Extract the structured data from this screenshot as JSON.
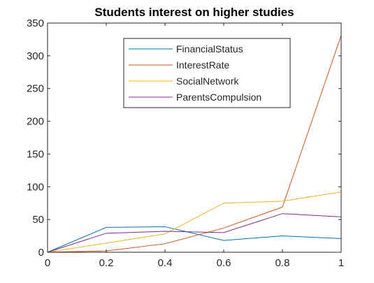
{
  "chart_data": {
    "type": "line",
    "title": "Students interest on higher studies",
    "xlabel": "",
    "ylabel": "",
    "x": [
      0,
      0.2,
      0.4,
      0.6,
      0.8,
      1
    ],
    "xlim": [
      0,
      1
    ],
    "ylim": [
      0,
      350
    ],
    "xticks": [
      "0",
      "0.2",
      "0.4",
      "0.6",
      "0.8",
      "1"
    ],
    "yticks": [
      "0",
      "50",
      "100",
      "150",
      "200",
      "250",
      "300",
      "350"
    ],
    "xtick_values": [
      0,
      0.2,
      0.4,
      0.6,
      0.8,
      1
    ],
    "ytick_values": [
      0,
      50,
      100,
      150,
      200,
      250,
      300,
      350
    ],
    "grid": false,
    "legend_position": "top-center",
    "series": [
      {
        "name": "FinancialStatus",
        "color": "#0072BD",
        "values": [
          0,
          38,
          39,
          18,
          25,
          21
        ]
      },
      {
        "name": "InterestRate",
        "color": "#D95319",
        "values": [
          0,
          2,
          13,
          37,
          69,
          331
        ]
      },
      {
        "name": "SocialNetwork",
        "color": "#EDB120",
        "values": [
          0,
          14,
          28,
          75,
          78,
          92
        ]
      },
      {
        "name": "ParentsCompulsion",
        "color": "#7E2F8E",
        "values": [
          0,
          29,
          32,
          30,
          59,
          54
        ]
      }
    ]
  }
}
